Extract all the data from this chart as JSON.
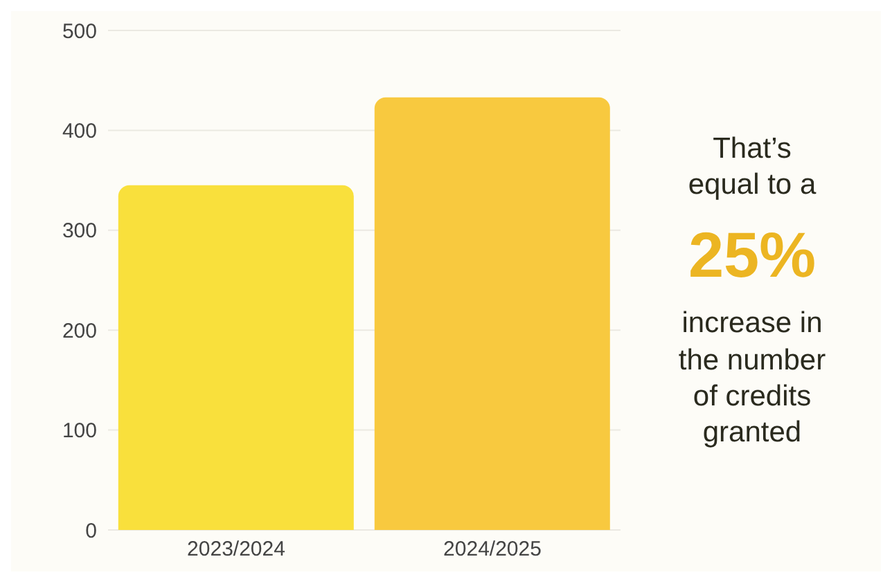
{
  "chart_data": {
    "type": "bar",
    "categories": [
      "2023/2024",
      "2024/2025"
    ],
    "values": [
      345,
      433
    ],
    "colors": [
      "#f9e03c",
      "#f8c93f"
    ],
    "ylim": [
      0,
      500
    ],
    "yticks": [
      0,
      100,
      200,
      300,
      400,
      500
    ],
    "grid": "y",
    "annotations": [
      "That’s equal to a",
      "25%",
      "increase in the number of credits granted"
    ]
  }
}
